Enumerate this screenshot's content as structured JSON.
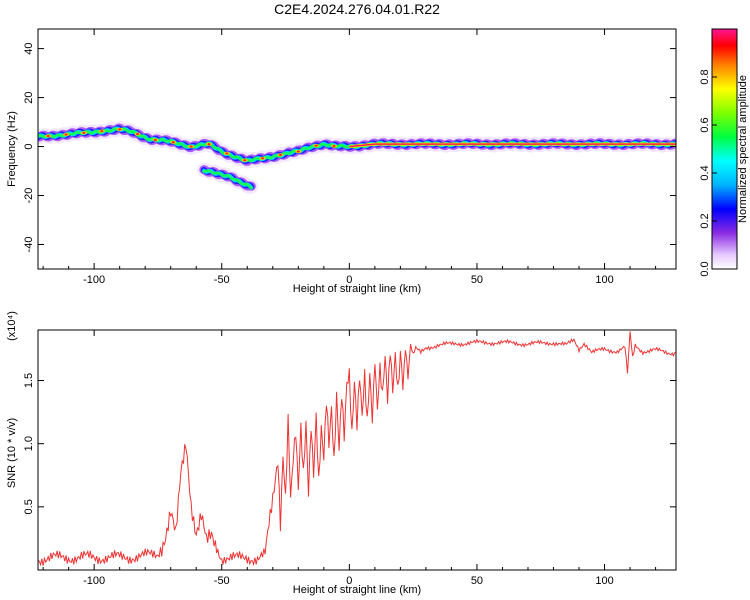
{
  "figure": {
    "title": "C2E4.2024.276.04.01.R22"
  },
  "chart_data": [
    {
      "type": "heatmap",
      "name": "spectrogram",
      "xlabel": "Height of straight line (km)",
      "ylabel": "Frequency (Hz)",
      "xlim": [
        -122,
        128
      ],
      "ylim": [
        -50,
        48
      ],
      "xticks": [
        -100,
        -50,
        0,
        50,
        100
      ],
      "yticks": [
        -40,
        -20,
        0,
        20,
        40
      ],
      "ytick_labels": [
        "-40",
        "-20",
        "0",
        "20",
        "40"
      ],
      "grid": false,
      "colorbar": {
        "label": "Normalized spectral amplitude",
        "range": [
          0.0,
          1.0
        ],
        "ticks": [
          0.0,
          0.2,
          0.4,
          0.6,
          0.8
        ],
        "tick_labels": [
          "0.0",
          "0.2",
          "0.4",
          "0.6",
          "0.8"
        ],
        "colormap": "rainbow (white, violet, blue, cyan, green, yellow, red, magenta)"
      },
      "ridges": [
        {
          "points": [
            [
              -122,
              4
            ],
            [
              -110,
              5
            ],
            [
              -100,
              6
            ],
            [
              -90,
              7
            ],
            [
              -85,
              6
            ],
            [
              -78,
              3
            ],
            [
              -70,
              2
            ],
            [
              -62,
              0
            ],
            [
              -55,
              1
            ],
            [
              -50,
              -2
            ],
            [
              -45,
              -4
            ],
            [
              -40,
              -6
            ],
            [
              -35,
              -5
            ],
            [
              -30,
              -4
            ],
            [
              -25,
              -3
            ],
            [
              -20,
              -2
            ],
            [
              -15,
              0
            ],
            [
              -10,
              1
            ],
            [
              -5,
              0
            ],
            [
              0,
              0
            ],
            [
              10,
              1
            ],
            [
              30,
              1
            ],
            [
              60,
              1
            ],
            [
              80,
              1
            ],
            [
              100,
              1
            ],
            [
              128,
              1
            ]
          ]
        },
        {
          "points": [
            [
              -57,
              -10
            ],
            [
              -52,
              -11
            ],
            [
              -47,
              -12
            ],
            [
              -42,
              -15
            ],
            [
              -38,
              -17
            ]
          ]
        }
      ]
    },
    {
      "type": "line",
      "name": "snr",
      "xlabel": "Height of straight line (km)",
      "ylabel": "SNR (10 * v/v)",
      "y_multiplier_label": "(x10⁴)",
      "xlim": [
        -122,
        128
      ],
      "ylim": [
        0,
        1.9
      ],
      "xticks": [
        -100,
        -50,
        0,
        50,
        100
      ],
      "yticks": [
        0.5,
        1.0,
        1.5
      ],
      "ytick_labels": [
        "0.5",
        "1.0",
        "1.5"
      ],
      "grid": false,
      "series_color": "#ee3333",
      "x": [
        -122,
        -110,
        -100,
        -90,
        -80,
        -75,
        -72,
        -70,
        -68,
        -66,
        -64,
        -62,
        -60,
        -58,
        -56,
        -54,
        -50,
        -45,
        -40,
        -36,
        -33,
        -31,
        -30,
        -28,
        -27,
        -26,
        -25,
        -24,
        -23,
        -22,
        -21,
        -20,
        -19,
        -18,
        -17,
        -16,
        -15,
        -14,
        -13,
        -12,
        -11,
        -10,
        -9,
        -8,
        -7,
        -6,
        -5,
        -4,
        -3,
        -2,
        -1,
        0,
        1,
        2,
        3,
        4,
        5,
        6,
        7,
        8,
        9,
        10,
        11,
        12,
        13,
        14,
        15,
        16,
        17,
        18,
        19,
        20,
        21,
        22,
        23,
        24,
        25,
        26,
        28,
        30,
        35,
        40,
        50,
        60,
        70,
        80,
        85,
        88,
        90,
        92,
        95,
        100,
        105,
        108,
        109,
        110,
        111,
        112,
        115,
        120,
        125,
        128
      ],
      "values": [
        0.09,
        0.1,
        0.1,
        0.1,
        0.11,
        0.13,
        0.28,
        0.45,
        0.25,
        0.75,
        1.02,
        0.55,
        0.3,
        0.42,
        0.2,
        0.26,
        0.1,
        0.09,
        0.1,
        0.09,
        0.12,
        0.4,
        0.55,
        0.9,
        0.4,
        0.95,
        0.6,
        1.2,
        0.55,
        0.85,
        1.05,
        0.6,
        1.1,
        0.75,
        1.18,
        0.65,
        1.2,
        0.8,
        1.25,
        0.7,
        1.1,
        0.85,
        1.3,
        0.95,
        1.25,
        0.85,
        1.4,
        1.0,
        1.45,
        1.1,
        1.5,
        1.55,
        1.05,
        1.45,
        1.1,
        1.5,
        1.2,
        1.55,
        1.2,
        1.6,
        1.25,
        1.65,
        1.3,
        1.6,
        1.35,
        1.68,
        1.3,
        1.7,
        1.4,
        1.72,
        1.45,
        1.74,
        1.5,
        1.76,
        1.55,
        1.78,
        1.7,
        1.75,
        1.72,
        1.76,
        1.78,
        1.79,
        1.8,
        1.8,
        1.79,
        1.8,
        1.78,
        1.82,
        1.75,
        1.8,
        1.72,
        1.75,
        1.73,
        1.76,
        1.55,
        1.88,
        1.68,
        1.78,
        1.73,
        1.74,
        1.72,
        1.72
      ]
    }
  ]
}
